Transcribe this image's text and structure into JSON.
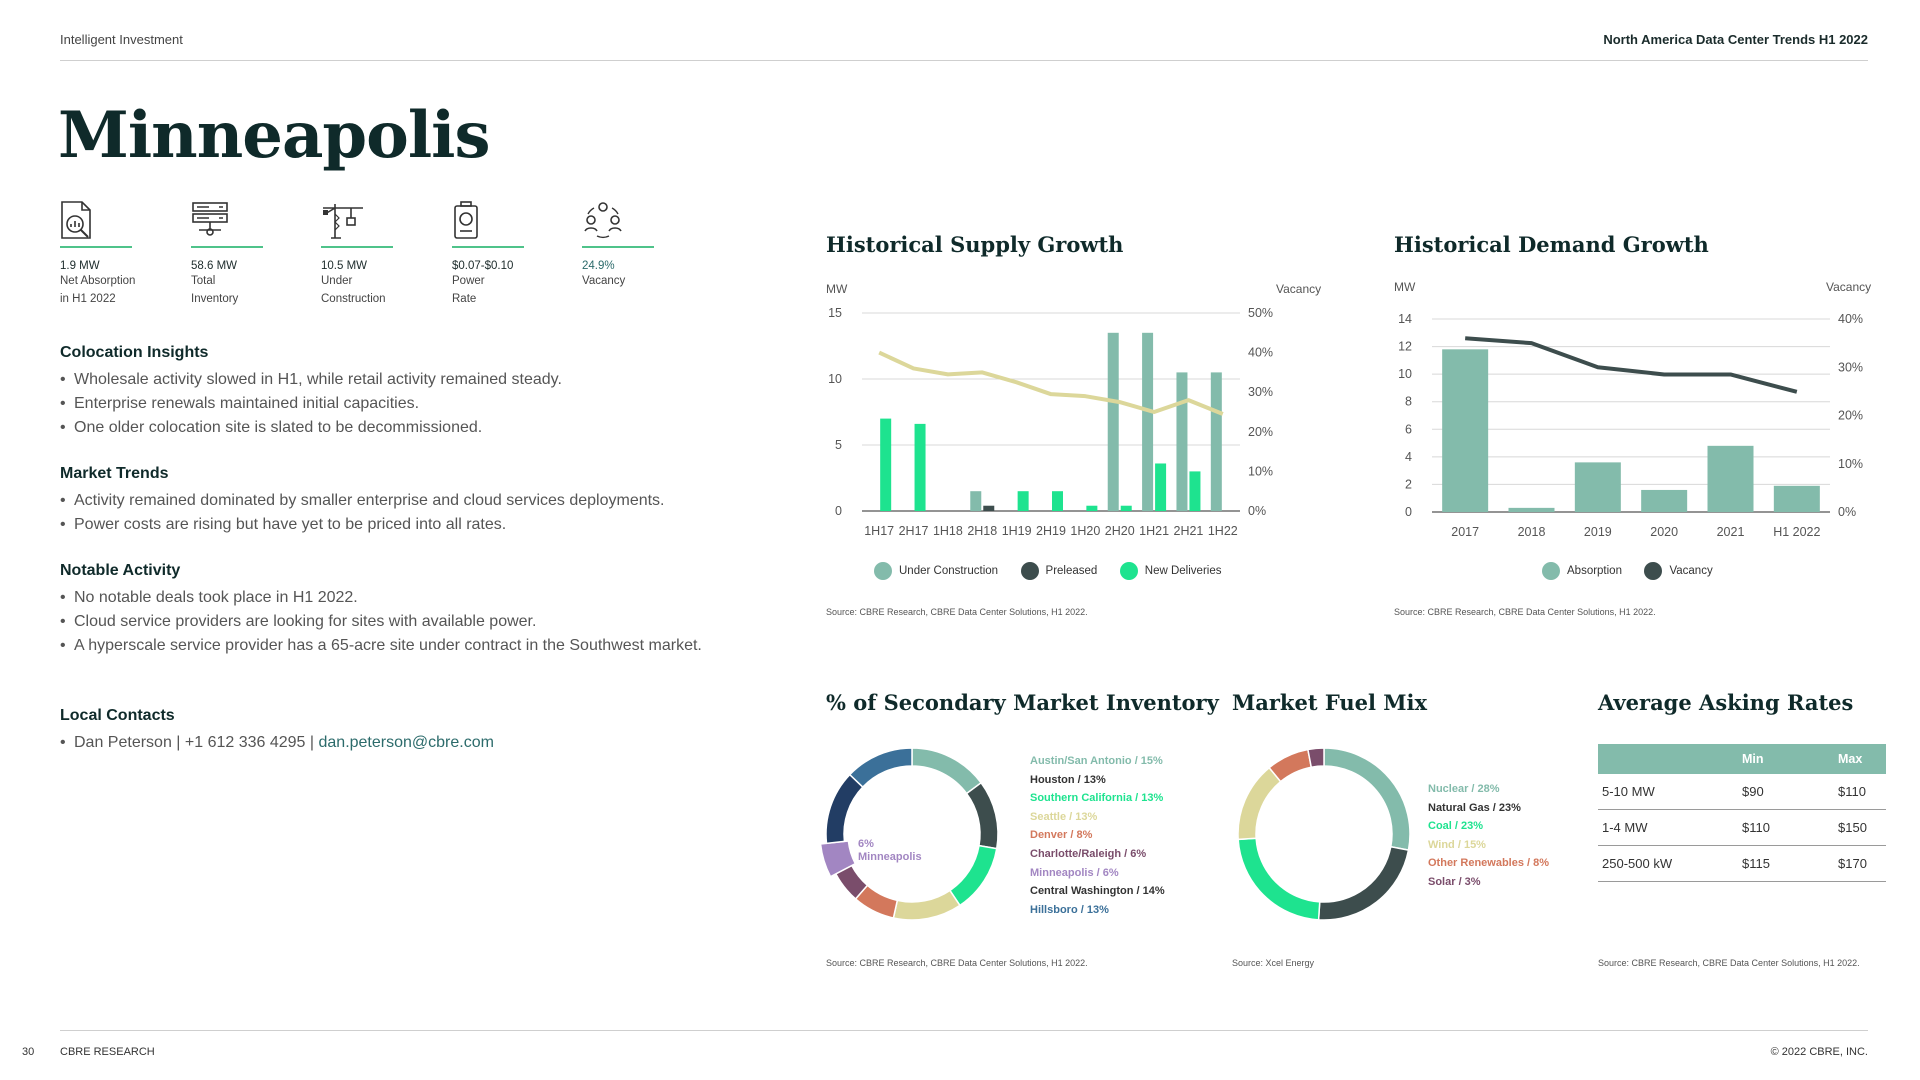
{
  "header": {
    "left": "Intelligent Investment",
    "right": "North America Data Center Trends H1 2022"
  },
  "city": "Minneapolis",
  "stats": [
    {
      "icon": "absorption-report-icon",
      "value": "1.9 MW",
      "label1": "Net Absorption",
      "label2": "in H1 2022"
    },
    {
      "icon": "server-inventory-icon",
      "value": "58.6 MW",
      "label1": "Total",
      "label2": "Inventory"
    },
    {
      "icon": "construction-crane-icon",
      "value": "10.5 MW",
      "label1": "Under",
      "label2": "Construction"
    },
    {
      "icon": "power-meter-icon",
      "value": "$0.07-$0.10",
      "label1": "Power",
      "label2": "Rate"
    },
    {
      "icon": "vacancy-people-icon",
      "value": "24.9%",
      "label1": "Vacancy",
      "label2": ""
    }
  ],
  "colocation": {
    "title": "Colocation Insights",
    "items": [
      "Wholesale activity slowed in H1, while retail activity remained steady.",
      "Enterprise renewals maintained initial capacities.",
      "One older colocation site is slated to be decommissioned."
    ]
  },
  "market_trends": {
    "title": "Market Trends",
    "items": [
      "Activity remained dominated by smaller enterprise and cloud services deployments.",
      "Power costs are rising but have yet to be priced into all rates."
    ]
  },
  "notable": {
    "title": "Notable Activity",
    "items": [
      "No notable deals took place in H1 2022.",
      "Cloud service providers are looking for sites with available power.",
      "A hyperscale service provider has a 65-acre site under contract in the Southwest market."
    ]
  },
  "contacts": {
    "title": "Local Contacts",
    "prefix": "Dan Peterson | +1 612 336 4295 |",
    "email": " dan.peterson@cbre.com"
  },
  "chart_data": [
    {
      "type": "bar",
      "title": "Historical Supply Growth",
      "ylabel": "MW",
      "y2label": "Vacancy",
      "ylim": [
        0,
        15
      ],
      "y2lim": [
        0,
        50
      ],
      "yticks": [
        "0",
        "5",
        "10",
        "15"
      ],
      "y2ticks": [
        "0%",
        "10%",
        "20%",
        "30%",
        "40%",
        "50%"
      ],
      "categories": [
        "1H17",
        "2H17",
        "1H18",
        "2H18",
        "1H19",
        "2H19",
        "1H20",
        "2H20",
        "1H21",
        "2H21",
        "1H22"
      ],
      "series": [
        {
          "name": "Under Construction",
          "color": "#83bbab",
          "values": [
            0,
            0,
            0,
            1.5,
            0,
            0,
            0,
            13.5,
            13.5,
            10.5,
            10.5
          ]
        },
        {
          "name": "Preleased",
          "color": "#3d4d4d",
          "values": [
            0,
            0,
            0,
            0.4,
            0,
            0,
            0,
            0,
            0,
            0,
            0
          ]
        },
        {
          "name": "New Deliveries",
          "color": "#1ee38f",
          "values": [
            7,
            6.6,
            0,
            0,
            1.5,
            1.5,
            0.4,
            0.4,
            3.6,
            3,
            0
          ]
        },
        {
          "name": "Vacancy",
          "type": "line",
          "color": "#dcd79a",
          "values": [
            40,
            36,
            34.5,
            35,
            32.5,
            29.5,
            29,
            27.5,
            25,
            28,
            24.5
          ]
        }
      ],
      "source": "Source: CBRE Research, CBRE Data Center Solutions, H1 2022."
    },
    {
      "type": "bar",
      "title": "Historical Demand Growth",
      "ylabel": "MW",
      "y2label": "Vacancy",
      "ylim": [
        0,
        14
      ],
      "y2lim": [
        0,
        40
      ],
      "yticks": [
        "0",
        "2",
        "4",
        "6",
        "8",
        "10",
        "12",
        "14"
      ],
      "y2ticks": [
        "0%",
        "10%",
        "20%",
        "30%",
        "40%"
      ],
      "categories": [
        "2017",
        "2018",
        "2019",
        "2020",
        "2021",
        "H1 2022"
      ],
      "series": [
        {
          "name": "Absorption",
          "color": "#83bbab",
          "values": [
            11.8,
            0.3,
            3.6,
            1.6,
            4.8,
            1.9
          ]
        },
        {
          "name": "Vacancy",
          "type": "line",
          "color": "#3d4d4d",
          "values": [
            36,
            35,
            30,
            28.5,
            28.5,
            24.9
          ]
        }
      ],
      "source": "Source: CBRE Research, CBRE Data Center Solutions, H1 2022."
    },
    {
      "type": "pie",
      "title": "% of Secondary Market Inventory",
      "center_label_1": "6%",
      "center_label_2": "Minneapolis",
      "labels": [
        "Austin/San Antonio / 15%",
        "Houston / 13%",
        "Southern California / 13%",
        "Seattle / 13%",
        "Denver / 8%",
        "Charlotte/Raleigh / 6%",
        "Minneapolis / 6%",
        "Central Washington / 14%",
        "Hillsboro / 13%"
      ],
      "values": [
        15,
        13,
        13,
        13,
        8,
        6,
        6,
        14,
        13
      ],
      "colors": [
        "#83bbab",
        "#3d4d4d",
        "#1ee38f",
        "#dcd79a",
        "#d3785c",
        "#7a4d6b",
        "#a286c2",
        "#223d64",
        "#3b7099"
      ],
      "source": "Source: CBRE Research, CBRE Data Center Solutions, H1 2022."
    },
    {
      "type": "pie",
      "title": "Market Fuel Mix",
      "labels": [
        "Nuclear / 28%",
        "Natural Gas / 23%",
        "Coal / 23%",
        "Wind / 15%",
        "Other Renewables / 8%",
        "Solar / 3%"
      ],
      "values": [
        28,
        23,
        23,
        15,
        8,
        3
      ],
      "colors": [
        "#83bbab",
        "#3d4d4d",
        "#1ee38f",
        "#dcd79a",
        "#d3785c",
        "#7a4d6b"
      ],
      "source": "Source: Xcel Energy"
    },
    {
      "type": "table",
      "title": "Average Asking Rates",
      "columns": [
        "",
        "Min",
        "Max"
      ],
      "rows": [
        [
          "5-10 MW",
          "$90",
          "$110"
        ],
        [
          "1-4 MW",
          "$110",
          "$150"
        ],
        [
          "250-500 kW",
          "$115",
          "$170"
        ]
      ],
      "source": "Source: CBRE Research, CBRE Data Center Solutions, H1 2022."
    }
  ],
  "footer": {
    "page": "30",
    "left": "CBRE RESEARCH",
    "right": "© 2022 CBRE, INC."
  }
}
